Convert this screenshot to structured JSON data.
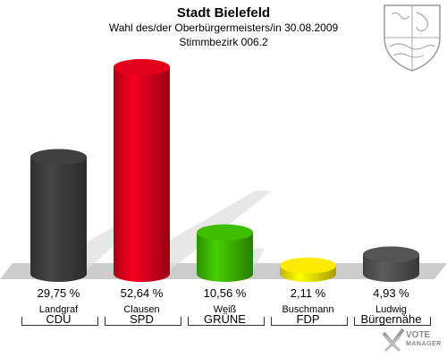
{
  "header": {
    "title": "Stadt Bielefeld",
    "subtitle1": "Wahl des/der Oberbürgermeisters/in 30.08.2009",
    "subtitle2": "Stimmbezirk 006.2"
  },
  "logo": {
    "line1": "VOTE",
    "line2": "MANAGER"
  },
  "colors": {
    "CDU": "#3c3c3c",
    "SPD": "#d8001c",
    "GRUENE": "#3cb400",
    "FDP": "#f0e000",
    "BUERGERNAEHE": "#505050",
    "floor": "#cccccc"
  },
  "chart_data": {
    "type": "bar",
    "categories": [
      "CDU",
      "SPD",
      "GRÜNE",
      "FDP",
      "Bürgernähe"
    ],
    "candidates": [
      "Landgraf",
      "Clausen",
      "Weiß",
      "Buschmann",
      "Ludwig"
    ],
    "values": [
      29.75,
      52.64,
      10.56,
      2.11,
      4.93
    ],
    "value_labels": [
      "29,75 %",
      "52,64 %",
      "10,56 %",
      "2,11 %",
      "4,93 %"
    ],
    "colors": [
      "#3c3c3c",
      "#d8001c",
      "#3cb400",
      "#f0e000",
      "#505050"
    ],
    "unit": "%",
    "ylim": [
      0,
      52.64
    ],
    "grid": false,
    "legend": "none"
  }
}
